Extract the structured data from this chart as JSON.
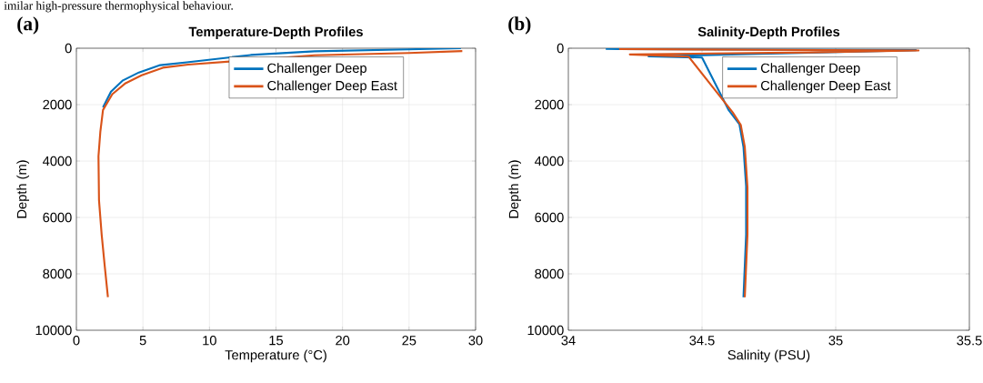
{
  "chart_data": [
    {
      "type": "line",
      "title": "Temperature-Depth Profiles",
      "xlabel": "Temperature (°C)",
      "ylabel": "Depth (m)",
      "annotations": [
        "imilar high-pressure thermophysical behaviour.",
        "(a)"
      ],
      "xlim": [
        0,
        30
      ],
      "ylim": [
        10000,
        0
      ],
      "xticks": [
        0,
        5,
        10,
        15,
        20,
        25,
        30
      ],
      "yticks": [
        0,
        2000,
        4000,
        6000,
        8000,
        10000
      ],
      "grid": true,
      "legend": "top right",
      "series": [
        {
          "name": "Challenger Deep",
          "color": "#0072bd",
          "x": [
            28.9,
            25,
            17.9,
            13.1,
            8.3,
            6.3,
            4.7,
            3.5,
            2.6,
            2.0
          ],
          "values": [
            0,
            40,
            110,
            240,
            500,
            600,
            860,
            1140,
            1540,
            2100
          ]
        },
        {
          "name": "Challenger Deep East",
          "color": "#d95319",
          "x": [
            29.0,
            25,
            17.9,
            8.4,
            6.5,
            4.9,
            3.7,
            2.7,
            2.0,
            1.8,
            1.66,
            1.7,
            1.9,
            2.13,
            2.37
          ],
          "values": [
            100,
            170,
            250,
            580,
            690,
            960,
            1240,
            1630,
            2190,
            2960,
            3830,
            5390,
            6610,
            7720,
            8830
          ]
        }
      ]
    },
    {
      "type": "line",
      "title": "Salinity-Depth Profiles",
      "xlabel": "Salinity (PSU)",
      "ylabel": "Depth (m)",
      "annotations": [
        "(b)"
      ],
      "xlim": [
        34,
        35.5
      ],
      "ylim": [
        10000,
        0
      ],
      "xticks": [
        34,
        34.5,
        35,
        35.5
      ],
      "yticks": [
        0,
        2000,
        4000,
        6000,
        8000,
        10000
      ],
      "grid": true,
      "legend": "top right",
      "series": [
        {
          "name": "Challenger Deep",
          "color": "#0072bd",
          "x": [
            34.14,
            34.19,
            35.3,
            34.9,
            34.3,
            34.5,
            34.6,
            34.64,
            34.655,
            34.665,
            34.665,
            34.655
          ],
          "values": [
            20,
            30,
            70,
            160,
            290,
            330,
            2200,
            2700,
            3500,
            4900,
            6600,
            8830
          ]
        },
        {
          "name": "Challenger Deep East",
          "color": "#d95319",
          "x": [
            34.19,
            35.31,
            34.9,
            34.23,
            34.45,
            34.615,
            34.645,
            34.66,
            34.67,
            34.67,
            34.66
          ],
          "values": [
            30,
            80,
            150,
            220,
            300,
            2280,
            2720,
            3500,
            4940,
            6610,
            8830
          ]
        }
      ]
    }
  ]
}
